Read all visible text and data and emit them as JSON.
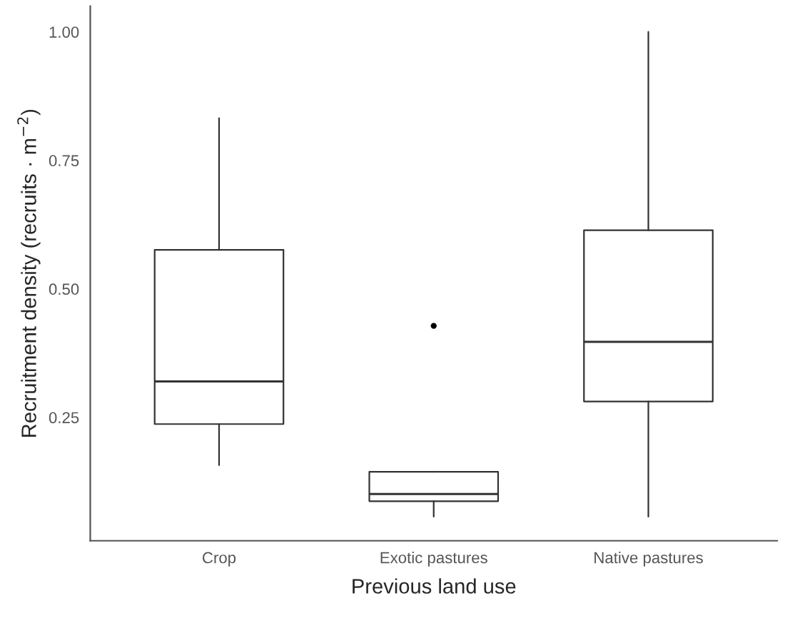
{
  "chart_data": {
    "type": "box",
    "xlabel": "Previous land use",
    "ylabel": "Recruitment density (recruits · m$^{−2}$)",
    "categories": [
      "Crop",
      "Exotic pastures",
      "Native pastures"
    ],
    "boxes": [
      {
        "low": 0.157,
        "q1": 0.237,
        "median": 0.32,
        "q3": 0.576,
        "high": 0.832
      },
      {
        "low": 0.057,
        "q1": 0.087,
        "median": 0.101,
        "q3": 0.144,
        "high": 0.144,
        "outliers": [
          0.428
        ]
      },
      {
        "low": 0.057,
        "q1": 0.281,
        "median": 0.397,
        "q3": 0.614,
        "high": 1.0
      }
    ],
    "ylim": [
      0.01,
      1.05
    ],
    "yticks": [
      {
        "value": 0.25,
        "label": "0.25"
      },
      {
        "value": 0.5,
        "label": "0.50"
      },
      {
        "value": 0.75,
        "label": "0.75"
      },
      {
        "value": 1.0,
        "label": "1.00"
      }
    ],
    "grid": false
  }
}
